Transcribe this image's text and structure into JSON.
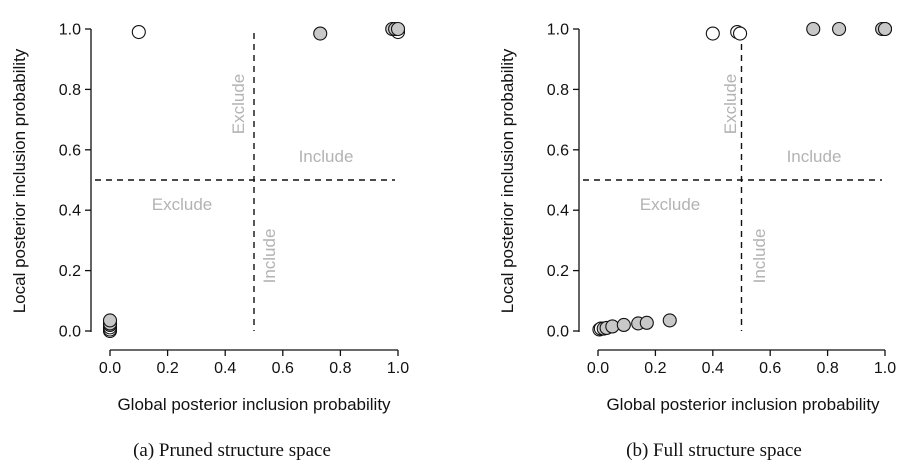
{
  "chart_data": [
    {
      "type": "scatter",
      "caption": "(a) Pruned structure space",
      "xlabel": "Global posterior inclusion probability",
      "ylabel": "Local posterior inclusion probability",
      "xlim": [
        0,
        1
      ],
      "ylim": [
        0,
        1
      ],
      "xticks": [
        "0.0",
        "0.2",
        "0.4",
        "0.6",
        "0.8",
        "1.0"
      ],
      "yticks": [
        "0.0",
        "0.2",
        "0.4",
        "0.6",
        "0.8",
        "1.0"
      ],
      "thresholds": {
        "x": 0.5,
        "y": 0.5
      },
      "quadrant_labels": {
        "upper_exclude": "Exclude",
        "right_include": "Include",
        "left_exclude": "Exclude",
        "lower_include": "Include"
      },
      "series": [
        {
          "marker": "open",
          "points": [
            [
              0.1,
              0.99
            ],
            [
              1.0,
              0.99
            ],
            [
              0.0,
              0.0
            ],
            [
              0.0,
              0.005
            ],
            [
              0.0,
              0.012
            ]
          ]
        },
        {
          "marker": "filled",
          "points": [
            [
              0.73,
              0.985
            ],
            [
              0.98,
              1.0
            ],
            [
              0.99,
              1.0
            ],
            [
              1.0,
              1.0
            ],
            [
              0.0,
              0.02
            ],
            [
              0.0,
              0.025
            ],
            [
              0.0,
              0.035
            ]
          ]
        }
      ]
    },
    {
      "type": "scatter",
      "caption": "(b) Full structure space",
      "xlabel": "Global posterior inclusion probability",
      "ylabel": "Local posterior inclusion probability",
      "xlim": [
        0,
        1
      ],
      "ylim": [
        0,
        1
      ],
      "xticks": [
        "0.0",
        "0.2",
        "0.4",
        "0.6",
        "0.8",
        "1.0"
      ],
      "yticks": [
        "0.0",
        "0.2",
        "0.4",
        "0.6",
        "0.8",
        "1.0"
      ],
      "thresholds": {
        "x": 0.5,
        "y": 0.5
      },
      "quadrant_labels": {
        "upper_exclude": "Exclude",
        "right_include": "Include",
        "left_exclude": "Exclude",
        "lower_include": "Include"
      },
      "series": [
        {
          "marker": "open",
          "points": [
            [
              0.4,
              0.985
            ],
            [
              0.485,
              0.99
            ],
            [
              0.495,
              0.985
            ],
            [
              1.0,
              1.0
            ],
            [
              0.005,
              0.005
            ],
            [
              0.01,
              0.008
            ]
          ]
        },
        {
          "marker": "filled",
          "points": [
            [
              0.75,
              1.0
            ],
            [
              0.84,
              1.0
            ],
            [
              0.99,
              1.0
            ],
            [
              1.0,
              1.0
            ],
            [
              0.02,
              0.008
            ],
            [
              0.03,
              0.01
            ],
            [
              0.05,
              0.015
            ],
            [
              0.09,
              0.02
            ],
            [
              0.14,
              0.025
            ],
            [
              0.17,
              0.027
            ],
            [
              0.25,
              0.035
            ]
          ]
        }
      ]
    }
  ]
}
